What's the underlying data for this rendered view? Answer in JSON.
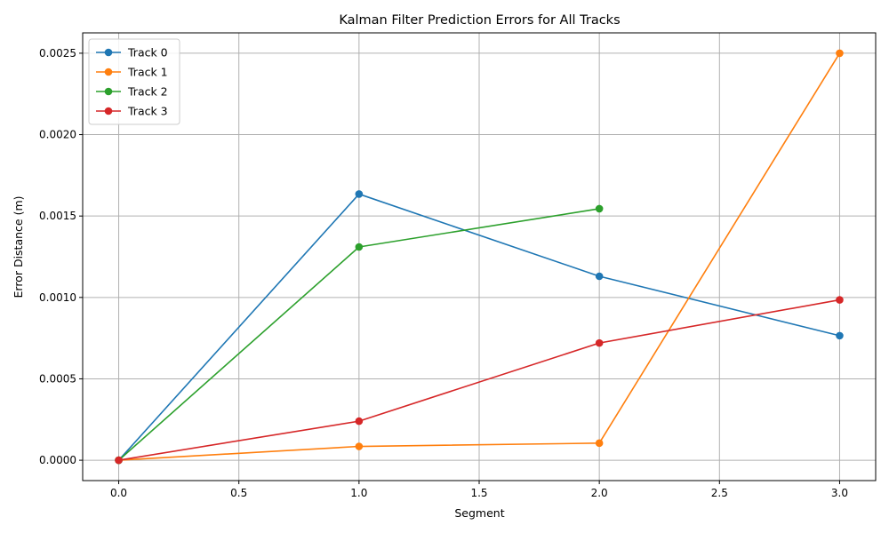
{
  "chart_data": {
    "type": "line",
    "title": "Kalman Filter Prediction Errors for All Tracks",
    "xlabel": "Segment",
    "ylabel": "Error Distance (m)",
    "xlim": [
      -0.15,
      3.15
    ],
    "ylim": [
      -0.000125,
      0.002625
    ],
    "xticks": [
      0.0,
      0.5,
      1.0,
      1.5,
      2.0,
      2.5,
      3.0
    ],
    "xtick_labels": [
      "0.0",
      "0.5",
      "1.0",
      "1.5",
      "2.0",
      "2.5",
      "3.0"
    ],
    "yticks": [
      0.0,
      0.0005,
      0.001,
      0.0015,
      0.002,
      0.0025
    ],
    "ytick_labels": [
      "0.0000",
      "0.0005",
      "0.0010",
      "0.0015",
      "0.0020",
      "0.0025"
    ],
    "grid": true,
    "legend_position": "top-left",
    "series": [
      {
        "name": "Track 0",
        "color": "#1f77b4",
        "x": [
          0,
          1,
          2,
          3
        ],
        "values": [
          0.0,
          0.001635,
          0.00113,
          0.000765
        ]
      },
      {
        "name": "Track 1",
        "color": "#ff7f0e",
        "x": [
          0,
          1,
          2,
          3
        ],
        "values": [
          0.0,
          8.5e-05,
          0.000105,
          0.0025
        ]
      },
      {
        "name": "Track 2",
        "color": "#2ca02c",
        "x": [
          0,
          1,
          2
        ],
        "values": [
          0.0,
          0.00131,
          0.001545
        ]
      },
      {
        "name": "Track 3",
        "color": "#d62728",
        "x": [
          0,
          1,
          2,
          3
        ],
        "values": [
          0.0,
          0.00024,
          0.00072,
          0.000985
        ]
      }
    ]
  }
}
